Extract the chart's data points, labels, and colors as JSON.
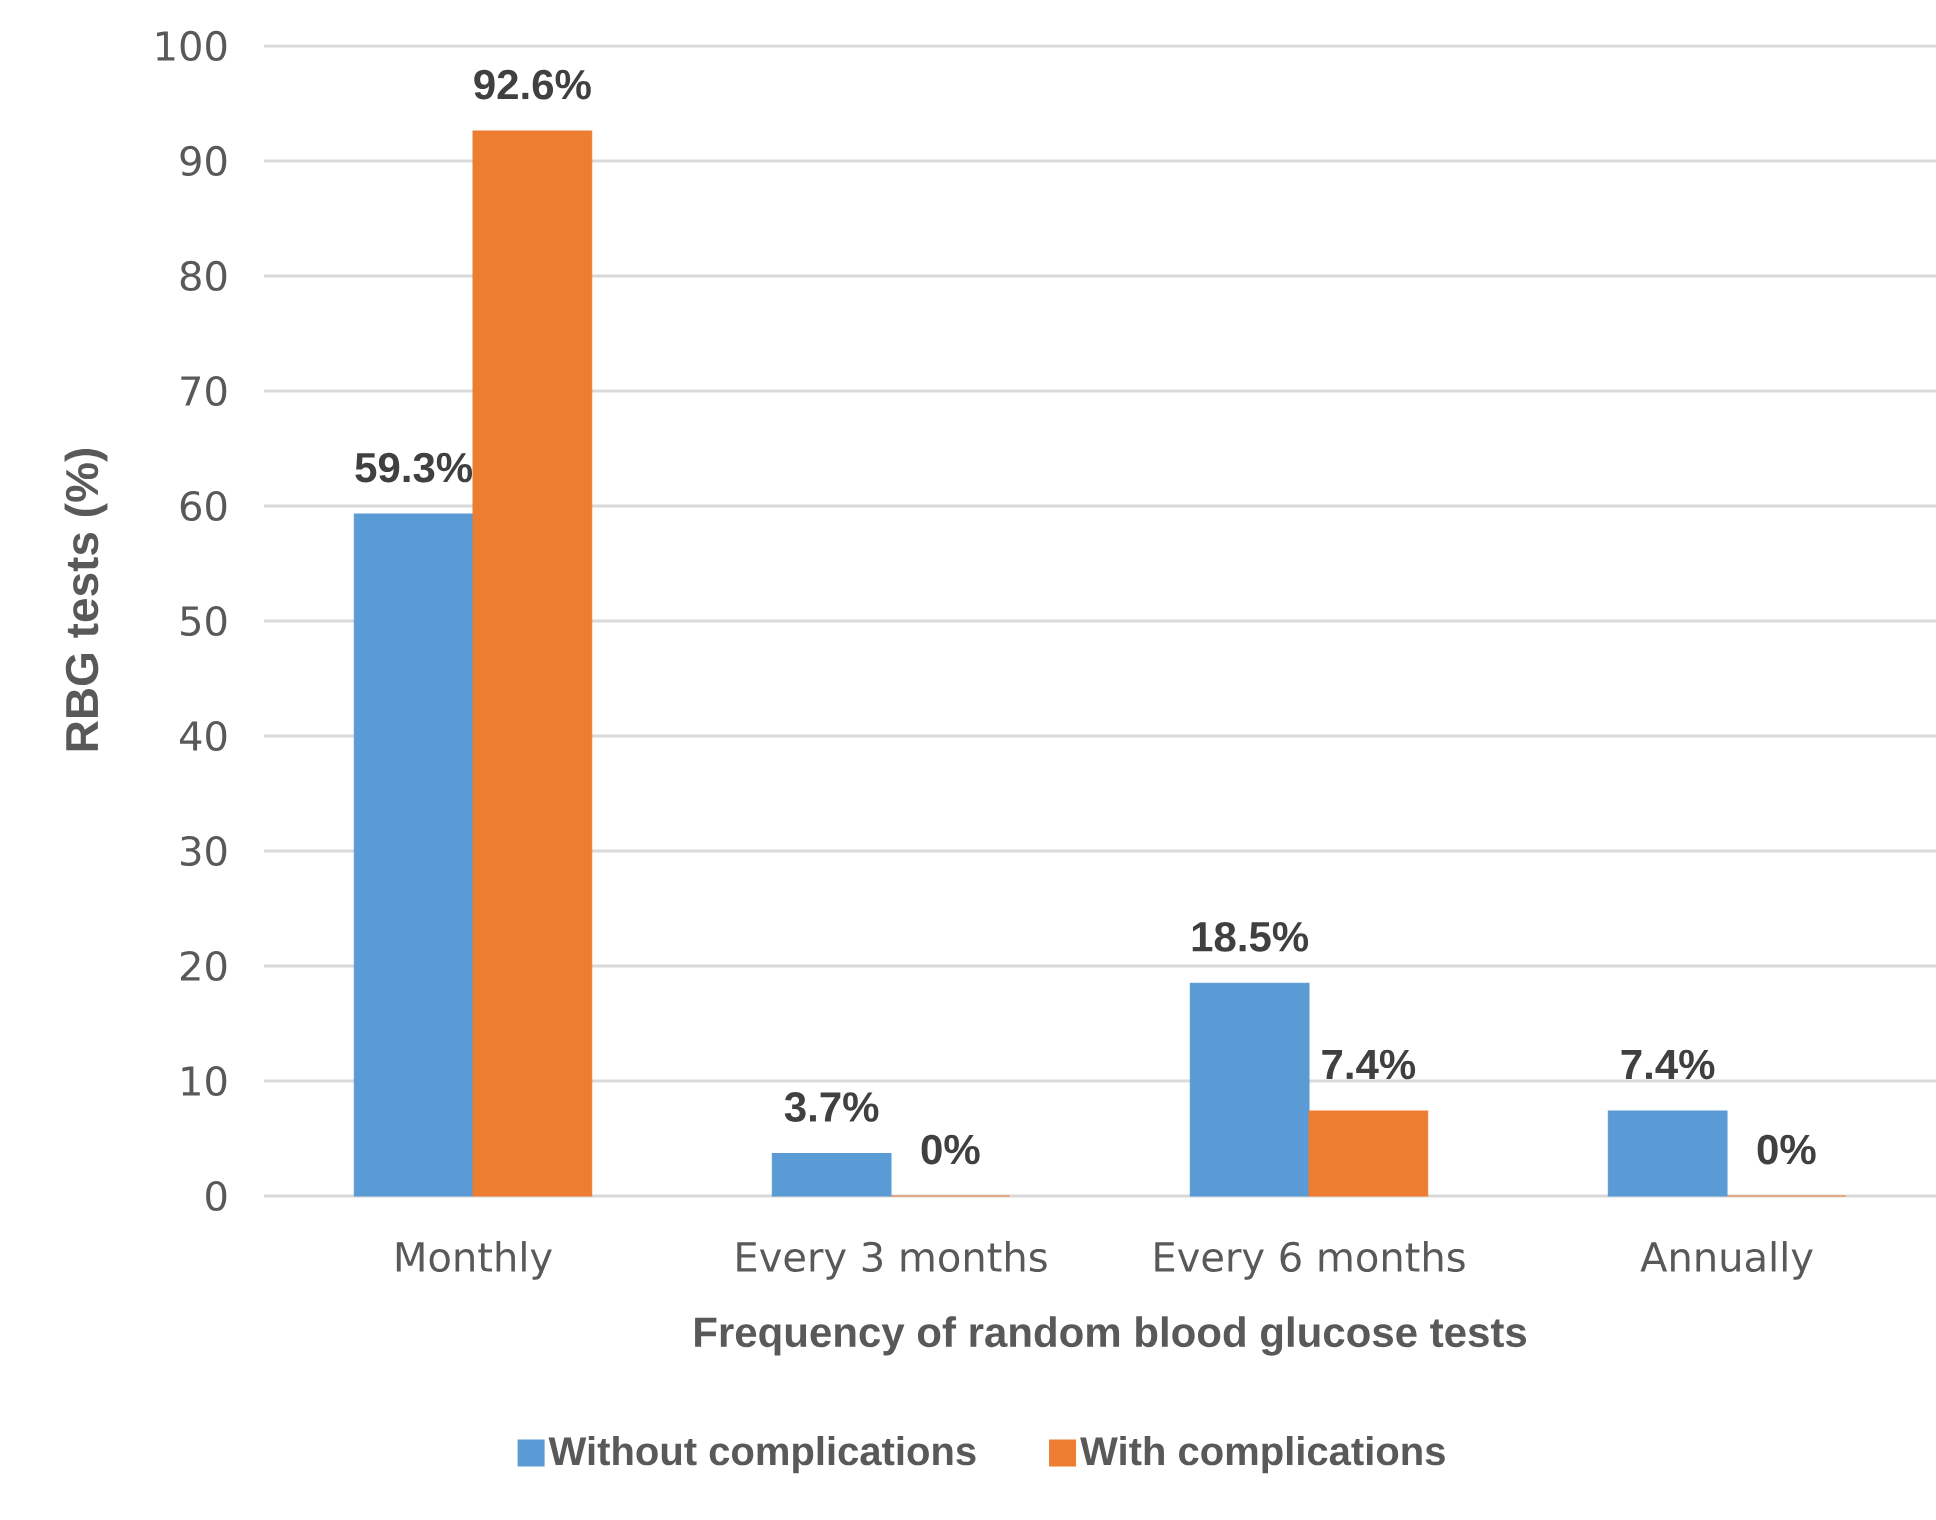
{
  "chart_data": {
    "type": "bar",
    "xlabel": "Frequency of random blood glucose tests",
    "ylabel": "RBG tests (%)",
    "categories": [
      "Monthly",
      "Every 3 months",
      "Every 6 months",
      "Annually"
    ],
    "series": [
      {
        "name": "Without complications",
        "color": "#5b9bd5",
        "values": [
          59.3,
          3.7,
          18.5,
          7.4
        ],
        "value_labels": [
          "59.3%",
          "3.7%",
          "18.5%",
          "7.4%"
        ]
      },
      {
        "name": "With complications",
        "color": "#ed7d31",
        "values": [
          92.6,
          0,
          7.4,
          0
        ],
        "value_labels": [
          "92.6%",
          "0%",
          "7.4%",
          "0%"
        ]
      }
    ],
    "ylim": [
      0,
      100
    ],
    "yticks": [
      0,
      10,
      20,
      30,
      40,
      50,
      60,
      70,
      80,
      90,
      100
    ],
    "grid": "y",
    "legend": "bottom"
  }
}
